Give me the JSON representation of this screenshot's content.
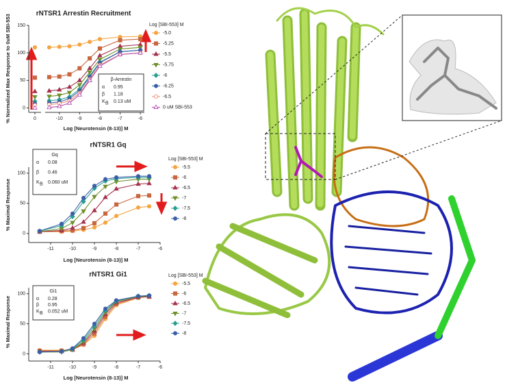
{
  "chart_data": [
    {
      "type": "scatter",
      "y_label": "% Normalized Max Response to 0uM SBI-553",
      "categories": [
        "0"
      ],
      "ylim": [
        -8,
        150
      ],
      "yticks": [
        0,
        50,
        100,
        150
      ],
      "series": [
        {
          "color": "#f5a440",
          "marker": "circle",
          "values": [
            110
          ]
        },
        {
          "color": "#c8673f",
          "marker": "square",
          "values": [
            55
          ]
        },
        {
          "color": "#a3324d",
          "marker": "triangle",
          "values": [
            30
          ]
        },
        {
          "color": "#6f8f2a",
          "marker": "triangle-down",
          "values": [
            20
          ]
        },
        {
          "color": "#2a9d8f",
          "marker": "diamond",
          "values": [
            12
          ]
        },
        {
          "color": "#3b5ea8",
          "marker": "circle",
          "values": [
            8
          ]
        },
        {
          "color": "#ef8a6a",
          "marker": "circle-open",
          "values": [
            5
          ]
        },
        {
          "color": "#b24fb4",
          "marker": "triangle-open",
          "values": [
            0
          ]
        }
      ]
    },
    {
      "type": "line",
      "title": "rNTSR1 Arrestin Recruitment",
      "x_label": "Log [Neurotensin (8-13)] M",
      "x": [
        -10.5,
        -10,
        -9.5,
        -9,
        -8.5,
        -8,
        -7,
        -6
      ],
      "xlim": [
        -10.7,
        -5.8
      ],
      "xticks": [
        -10,
        -9,
        -8,
        -7,
        -6
      ],
      "ylim": [
        -8,
        150
      ],
      "legend_title": "Log [SBI-553] M",
      "legend": "outside-right",
      "inset": {
        "title": "β-Arrestin",
        "stats": [
          {
            "symbol": "α",
            "value": "0.95"
          },
          {
            "symbol": "β",
            "value": "1.18"
          },
          {
            "symbol": "K",
            "subscript": "B",
            "value": "0.13 uM"
          }
        ]
      },
      "series": [
        {
          "name": "-5.0",
          "color": "#f5a440",
          "marker": "circle",
          "values": [
            110,
            111,
            112,
            115,
            120,
            125,
            129,
            130
          ]
        },
        {
          "name": "-5.25",
          "color": "#c8673f",
          "marker": "square",
          "values": [
            56,
            57,
            61,
            72,
            90,
            108,
            123,
            125
          ]
        },
        {
          "name": "-5.5",
          "color": "#a3324d",
          "marker": "triangle",
          "values": [
            31,
            33,
            38,
            50,
            72,
            95,
            112,
            115
          ]
        },
        {
          "name": "-5.75",
          "color": "#6f8f2a",
          "marker": "triangle-down",
          "values": [
            21,
            23,
            28,
            42,
            65,
            88,
            107,
            110
          ]
        },
        {
          "name": "-6",
          "color": "#2a9d8f",
          "marker": "diamond",
          "values": [
            13,
            15,
            20,
            34,
            58,
            83,
            102,
            105
          ]
        },
        {
          "name": "-6.25",
          "color": "#3b5ea8",
          "marker": "circle",
          "values": [
            9,
            11,
            17,
            31,
            56,
            82,
            102,
            105
          ]
        },
        {
          "name": "-6.5",
          "color": "#ef8a6a",
          "marker": "circle-open",
          "values": [
            6,
            8,
            13,
            27,
            52,
            78,
            97,
            100
          ]
        },
        {
          "name": "0 uM SBI-553",
          "color": "#b24fb4",
          "marker": "triangle-open",
          "values": [
            1,
            3,
            9,
            24,
            50,
            76,
            97,
            100
          ]
        }
      ]
    },
    {
      "type": "line",
      "title": "rNTSR1 Gq",
      "x_label": "Log [Neurotensin (8-13)] M",
      "y_label": "% Maximal Response",
      "x": [
        -11.5,
        -10.5,
        -10,
        -9.5,
        -9,
        -8.5,
        -8,
        -7,
        -6.5
      ],
      "xlim": [
        -12,
        -6
      ],
      "xticks": [
        -11,
        -10,
        -9,
        -8,
        -7,
        -6
      ],
      "ylim": [
        -15,
        110
      ],
      "yticks": [
        0,
        50,
        100
      ],
      "legend_title": "Log [SBI-553] M",
      "legend": "outside-right",
      "inset": {
        "title": "Gq",
        "stats": [
          {
            "symbol": "α",
            "value": "0.08"
          },
          {
            "symbol": "β",
            "value": "0.46"
          },
          {
            "symbol": "K",
            "subscript": "B",
            "value": "0.060 uM"
          }
        ]
      },
      "series": [
        {
          "name": "-5.5",
          "color": "#f5a440",
          "marker": "circle",
          "values": [
            3,
            3,
            4,
            6,
            10,
            18,
            29,
            43,
            45
          ]
        },
        {
          "name": "-6",
          "color": "#c8673f",
          "marker": "square",
          "values": [
            3,
            4,
            5,
            9,
            17,
            33,
            48,
            62,
            63
          ]
        },
        {
          "name": "-6.5",
          "color": "#a3324d",
          "marker": "triangle",
          "values": [
            3,
            5,
            9,
            19,
            38,
            60,
            74,
            82,
            83
          ]
        },
        {
          "name": "-7",
          "color": "#6f8f2a",
          "marker": "triangle-down",
          "values": [
            3,
            8,
            18,
            37,
            61,
            78,
            86,
            90,
            90
          ]
        },
        {
          "name": "-7.5",
          "color": "#2a9d8f",
          "marker": "diamond",
          "values": [
            4,
            13,
            28,
            53,
            75,
            87,
            91,
            93,
            93
          ]
        },
        {
          "name": "-8",
          "color": "#3b5ea8",
          "marker": "circle",
          "values": [
            4,
            16,
            33,
            59,
            79,
            90,
            93,
            95,
            95
          ]
        }
      ]
    },
    {
      "type": "line",
      "title": "rNTSR1 Gi1",
      "x_label": "Log [Neurotensin (8-13)] M",
      "y_label": "% Maximal Response",
      "x": [
        -11.5,
        -10.5,
        -10,
        -9.5,
        -9,
        -8.5,
        -8,
        -7,
        -6.5
      ],
      "xlim": [
        -12,
        -6
      ],
      "xticks": [
        -11,
        -10,
        -9,
        -8,
        -7,
        -6
      ],
      "ylim": [
        -12,
        110
      ],
      "yticks": [
        0,
        50,
        100
      ],
      "legend_title": "Log [SBI-553] M",
      "legend": "outside-right",
      "inset": {
        "title": "Gi1",
        "stats": [
          {
            "symbol": "α",
            "value": "0.28"
          },
          {
            "symbol": "β",
            "value": "0.95"
          },
          {
            "symbol": "K",
            "subscript": "B",
            "value": "0.052 uM"
          }
        ]
      },
      "series": [
        {
          "name": "-5.5",
          "color": "#f5a440",
          "marker": "circle",
          "values": [
            6,
            6,
            7,
            15,
            30,
            58,
            81,
            93,
            96
          ]
        },
        {
          "name": "-6",
          "color": "#c8673f",
          "marker": "square",
          "values": [
            5,
            5,
            7,
            16,
            34,
            62,
            83,
            94,
            95
          ]
        },
        {
          "name": "-6.5",
          "color": "#a3324d",
          "marker": "triangle",
          "values": [
            4,
            4,
            7,
            18,
            38,
            66,
            85,
            94,
            95
          ]
        },
        {
          "name": "-7",
          "color": "#6f8f2a",
          "marker": "triangle-down",
          "values": [
            3,
            3,
            7,
            20,
            42,
            69,
            87,
            95,
            96
          ]
        },
        {
          "name": "-7.5",
          "color": "#2a9d8f",
          "marker": "diamond",
          "values": [
            3,
            4,
            8,
            23,
            46,
            72,
            88,
            96,
            97
          ]
        },
        {
          "name": "-8",
          "color": "#3b5ea8",
          "marker": "circle",
          "values": [
            3,
            4,
            9,
            26,
            50,
            75,
            89,
            96,
            97
          ]
        }
      ]
    }
  ]
}
